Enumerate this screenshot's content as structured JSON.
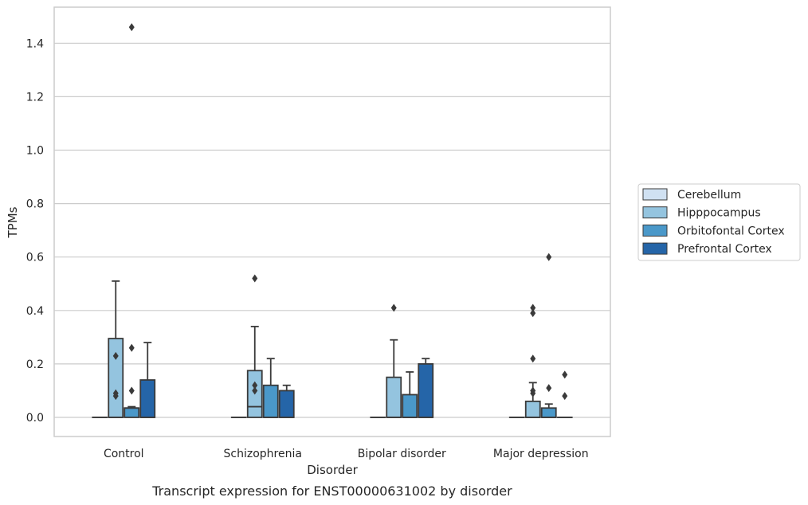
{
  "chart_data": {
    "type": "box",
    "caption": "Transcript expression for ENST00000631002 by disorder",
    "xlabel": "Disorder",
    "ylabel": "TPMs",
    "ylim": [
      -0.07,
      1.54
    ],
    "yticks": [
      0.0,
      0.2,
      0.4,
      0.6,
      0.8,
      1.0,
      1.2,
      1.4
    ],
    "ytick_labels": [
      "0.0",
      "0.2",
      "0.4",
      "0.6",
      "0.8",
      "1.0",
      "1.2",
      "1.4"
    ],
    "grid": "horizontal",
    "legend_position": "right",
    "categories": [
      "Control",
      "Schizophrenia",
      "Bipolar disorder",
      "Major depression"
    ],
    "series": [
      {
        "name": "Cerebellum",
        "color": "#d0e1f2",
        "boxes": [
          {
            "q1": 0,
            "median": 0,
            "q3": 0,
            "whisker_low": 0,
            "whisker_high": 0,
            "outliers": []
          },
          {
            "q1": 0,
            "median": 0,
            "q3": 0,
            "whisker_low": 0,
            "whisker_high": 0,
            "outliers": []
          },
          {
            "q1": 0,
            "median": 0,
            "q3": 0,
            "whisker_low": 0,
            "whisker_high": 0,
            "outliers": []
          },
          {
            "q1": 0,
            "median": 0,
            "q3": 0,
            "whisker_low": 0,
            "whisker_high": 0,
            "outliers": []
          }
        ]
      },
      {
        "name": "Hipppocampus",
        "color": "#94c4df",
        "boxes": [
          {
            "q1": 0,
            "median": 0,
            "q3": 0.295,
            "whisker_low": 0,
            "whisker_high": 0.51,
            "outliers": [
              0.08,
              0.09,
              0.23
            ]
          },
          {
            "q1": 0,
            "median": 0.04,
            "q3": 0.175,
            "whisker_low": 0,
            "whisker_high": 0.34,
            "outliers": [
              0.1,
              0.12,
              0.52
            ]
          },
          {
            "q1": 0,
            "median": 0,
            "q3": 0.15,
            "whisker_low": 0,
            "whisker_high": 0.29,
            "outliers": [
              0.41
            ]
          },
          {
            "q1": 0,
            "median": 0,
            "q3": 0.06,
            "whisker_low": 0,
            "whisker_high": 0.13,
            "outliers": [
              0.09,
              0.1,
              0.22,
              0.39,
              0.41
            ]
          }
        ]
      },
      {
        "name": "Orbitofontal Cortex",
        "color": "#4a98c9",
        "boxes": [
          {
            "q1": 0,
            "median": 0.035,
            "q3": 0.035,
            "whisker_low": 0,
            "whisker_high": 0.04,
            "outliers": [
              0.1,
              0.26,
              1.46
            ]
          },
          {
            "q1": 0,
            "median": 0,
            "q3": 0.12,
            "whisker_low": 0,
            "whisker_high": 0.22,
            "outliers": []
          },
          {
            "q1": 0,
            "median": 0,
            "q3": 0.085,
            "whisker_low": 0,
            "whisker_high": 0.17,
            "outliers": []
          },
          {
            "q1": 0,
            "median": 0,
            "q3": 0.035,
            "whisker_low": 0,
            "whisker_high": 0.05,
            "outliers": [
              0.11,
              0.6
            ]
          }
        ]
      },
      {
        "name": "Prefrontal Cortex",
        "color": "#2565a8",
        "boxes": [
          {
            "q1": 0,
            "median": 0,
            "q3": 0.14,
            "whisker_low": 0,
            "whisker_high": 0.28,
            "outliers": []
          },
          {
            "q1": 0,
            "median": 0,
            "q3": 0.1,
            "whisker_low": 0,
            "whisker_high": 0.12,
            "outliers": []
          },
          {
            "q1": 0,
            "median": 0,
            "q3": 0.2,
            "whisker_low": 0,
            "whisker_high": 0.22,
            "outliers": []
          },
          {
            "q1": 0,
            "median": 0,
            "q3": 0,
            "whisker_low": 0,
            "whisker_high": 0,
            "outliers": [
              0.08,
              0.16
            ]
          }
        ]
      }
    ]
  },
  "style": {
    "grid_color": "#cccccc",
    "frame_color": "#cccccc",
    "line_color": "#3a3a3a",
    "outlier_color": "#3a3a3a",
    "text_color": "#262626"
  }
}
